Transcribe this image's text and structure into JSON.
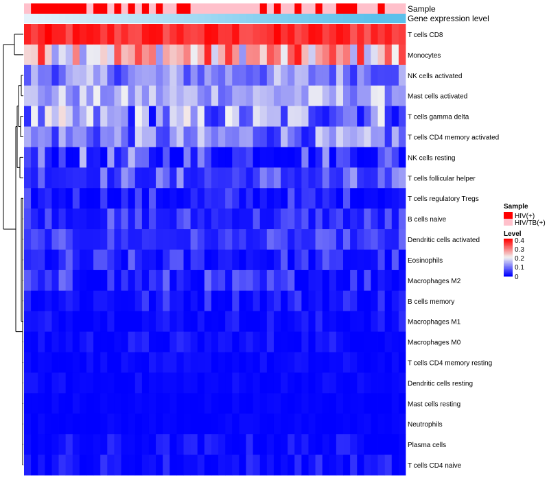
{
  "chart_data": {
    "type": "heatmap",
    "title": "",
    "annotation_tracks": [
      "Sample",
      "Gene expression level"
    ],
    "rows": [
      "T cells CD8",
      "Monocytes",
      "NK cells activated",
      "Mast cells activated",
      "T cells gamma delta",
      "T cells CD4 memory activated",
      "NK cells resting",
      "T cells follicular helper",
      "T cells regulatory  Tregs",
      "B cells naive",
      "Dendritic cells activated",
      "Eosinophils",
      "Macrophages M2",
      "B cells memory",
      "Macrophages M1",
      "Macrophages M0",
      "T cells CD4 memory resting",
      "Dendritic cells resting",
      "Mast cells resting",
      "Neutrophils",
      "Plasma cells",
      "T cells CD4 naive"
    ],
    "sample_groups": [
      1,
      0,
      0,
      0,
      0,
      0,
      0,
      0,
      0,
      1,
      0,
      0,
      1,
      0,
      1,
      0,
      1,
      0,
      1,
      0,
      1,
      1,
      0,
      0,
      1,
      1,
      1,
      1,
      1,
      1,
      1,
      1,
      1,
      1,
      0,
      1,
      0,
      1,
      1,
      0,
      1,
      1,
      0,
      1,
      1,
      0,
      0,
      0,
      1,
      1,
      1,
      0,
      1,
      1,
      1
    ],
    "expression_level": [
      0.0,
      0.02,
      0.04,
      0.06,
      0.08,
      0.1,
      0.12,
      0.14,
      0.16,
      0.18,
      0.2,
      0.22,
      0.24,
      0.26,
      0.28,
      0.3,
      0.32,
      0.34,
      0.36,
      0.38,
      0.4,
      0.42,
      0.44,
      0.46,
      0.48,
      0.5,
      0.52,
      0.54,
      0.56,
      0.58,
      0.6,
      0.62,
      0.64,
      0.66,
      0.68,
      0.7,
      0.72,
      0.74,
      0.76,
      0.78,
      0.8,
      0.82,
      0.84,
      0.86,
      0.88,
      0.9,
      0.92,
      0.94,
      0.96,
      0.98,
      1.0,
      1.0,
      1.0,
      1.0,
      1.0
    ],
    "row_profiles": [
      [
        0.32,
        0.4
      ],
      [
        0.12,
        0.38
      ],
      [
        0.04,
        0.18
      ],
      [
        0.08,
        0.2
      ],
      [
        0.0,
        0.22
      ],
      [
        0.02,
        0.18
      ],
      [
        0.0,
        0.16
      ],
      [
        0.02,
        0.14
      ],
      [
        0.0,
        0.08
      ],
      [
        0.01,
        0.1
      ],
      [
        0.02,
        0.09
      ],
      [
        0.0,
        0.09
      ],
      [
        0.0,
        0.1
      ],
      [
        0.0,
        0.07
      ],
      [
        0.0,
        0.04
      ],
      [
        0.0,
        0.04
      ],
      [
        0.0,
        0.02
      ],
      [
        0.0,
        0.02
      ],
      [
        0.0,
        0.01
      ],
      [
        0.0,
        0.01
      ],
      [
        0.0,
        0.04
      ],
      [
        0.0,
        0.05
      ]
    ],
    "color_scale": {
      "min": 0,
      "mid": 0.2,
      "max": 0.4,
      "low_color": "#0000ff",
      "mid_color": "#f2f2f2",
      "high_color": "#ff0000"
    },
    "group_colors": [
      "#ff0000",
      "#ffc0cb"
    ],
    "expression_colors": [
      "#e6f2fb",
      "#5bc0eb"
    ],
    "legend_sample": {
      "title": "Sample",
      "entries": [
        {
          "label": "HIV(+)",
          "color": "#ff0000"
        },
        {
          "label": "HIV/TB(+)",
          "color": "#ffc0cb"
        }
      ]
    },
    "legend_level": {
      "title": "Level",
      "ticks": [
        "0.4",
        "0.3",
        "0.2",
        "0.1",
        "0"
      ]
    }
  }
}
